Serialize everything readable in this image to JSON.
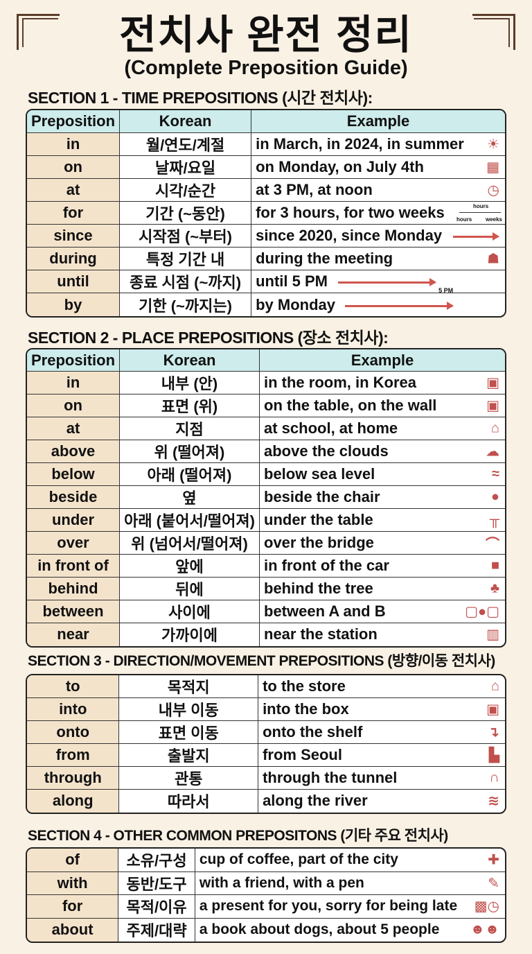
{
  "title": "전치사 완전 정리",
  "subtitle": "(Complete Preposition Guide)",
  "headers": {
    "preposition": "Preposition",
    "korean": "Korean",
    "example": "Example"
  },
  "colors": {
    "header_bg": "#cdeceb",
    "prep_bg": "#f4e3cb",
    "page_bg": "#f9f1e4",
    "arrow": "#d0554d"
  },
  "sections": [
    {
      "heading": "SECTION 1 - TIME PREPOSITIONS (시간 전치사):",
      "rows": [
        {
          "p": "in",
          "k": "월/연도/계절",
          "e": "in March, in 2024, in summer",
          "icon": "calendar-sun-icon"
        },
        {
          "p": "on",
          "k": "날짜/요일",
          "e": "on Monday, on July 4th",
          "icon": "calendar-icon"
        },
        {
          "p": "at",
          "k": "시각/순간",
          "e": "at 3 PM, at noon",
          "icon": "clock-icon"
        },
        {
          "p": "for",
          "k": "기간 (~동안)",
          "e": "for 3 hours, for two weeks",
          "icon": "timeline-icon",
          "icon_labels": [
            "hours",
            "hours",
            "weeks"
          ]
        },
        {
          "p": "since",
          "k": "시작점 (~부터)",
          "e": "since 2020, since Monday",
          "icon": "arrow-icon"
        },
        {
          "p": "during",
          "k": "특정 기간 내",
          "e": "during the meeting",
          "icon": "meeting-icon"
        },
        {
          "p": "until",
          "k": "종료 시점 (~까지)",
          "e": "until 5 PM",
          "icon": "arrow-icon",
          "icon_label": "5 PM"
        },
        {
          "p": "by",
          "k": "기한 (~까지는)",
          "e": "by Monday",
          "icon": "arrow-icon"
        }
      ]
    },
    {
      "heading": "SECTION 2 - PLACE PREPOSITIONS (장소 전치사):",
      "rows": [
        {
          "p": "in",
          "k": "내부 (안)",
          "e": "in the room, in Korea",
          "icon": "box-icon"
        },
        {
          "p": "on",
          "k": "표면 (위)",
          "e": "on the table, on the wall",
          "icon": "box-icon"
        },
        {
          "p": "at",
          "k": "지점",
          "e": "at school, at home",
          "icon": "school-icon"
        },
        {
          "p": "above",
          "k": "위 (떨어져)",
          "e": "above the clouds",
          "icon": "cloud-icon"
        },
        {
          "p": "below",
          "k": "아래 (떨어져)",
          "e": "below sea level",
          "icon": "sea-icon"
        },
        {
          "p": "beside",
          "k": "옆",
          "e": "beside the chair",
          "icon": "ball-chair-icon"
        },
        {
          "p": "under",
          "k": "아래 (붙어서/떨어져)",
          "e": "under the table",
          "icon": "table-icon"
        },
        {
          "p": "over",
          "k": "위 (넘어서/떨어져)",
          "e": "over the bridge",
          "icon": "bridge-icon"
        },
        {
          "p": "in front of",
          "k": "앞에",
          "e": "in front of the car",
          "icon": "car-icon"
        },
        {
          "p": "behind",
          "k": "뒤에",
          "e": "behind the tree",
          "icon": "tree-icon"
        },
        {
          "p": "between",
          "k": "사이에",
          "e": "between A and B",
          "icon": "blocks-icon"
        },
        {
          "p": "near",
          "k": "가까이에",
          "e": "near the station",
          "icon": "station-icon"
        }
      ]
    },
    {
      "heading": "SECTION 3 - DIRECTION/MOVEMENT PREPOSITIONS (방향/이동 전치사)",
      "rows": [
        {
          "p": "to",
          "k": "목적지",
          "e": "to the store",
          "icon": "store-icon"
        },
        {
          "p": "into",
          "k": "내부 이동",
          "e": "into the box",
          "icon": "box-icon"
        },
        {
          "p": "onto",
          "k": "표면 이동",
          "e": "onto the shelf",
          "icon": "shelf-icon"
        },
        {
          "p": "from",
          "k": "출발지",
          "e": "from Seoul",
          "icon": "city-icon"
        },
        {
          "p": "through",
          "k": "관통",
          "e": "through the tunnel",
          "icon": "tunnel-icon"
        },
        {
          "p": "along",
          "k": "따라서",
          "e": "along the river",
          "icon": "river-icon"
        }
      ]
    },
    {
      "heading": "SECTION 4 - OTHER COMMON PREPOSITONS (기타 주요 전치사)",
      "rows": [
        {
          "p": "of",
          "k": "소유/구성",
          "e": "cup of coffee, part of the city",
          "icon": "puzzle-icon"
        },
        {
          "p": "with",
          "k": "동반/도구",
          "e": "with a friend, with a pen",
          "icon": "pen-icon"
        },
        {
          "p": "for",
          "k": "목적/이유",
          "e": "a present for you, sorry for being late",
          "icon": "gift-clock-icon"
        },
        {
          "p": "about",
          "k": "주제/대략",
          "e": "a book about dogs, about 5 people",
          "icon": "people-icon"
        }
      ]
    }
  ]
}
